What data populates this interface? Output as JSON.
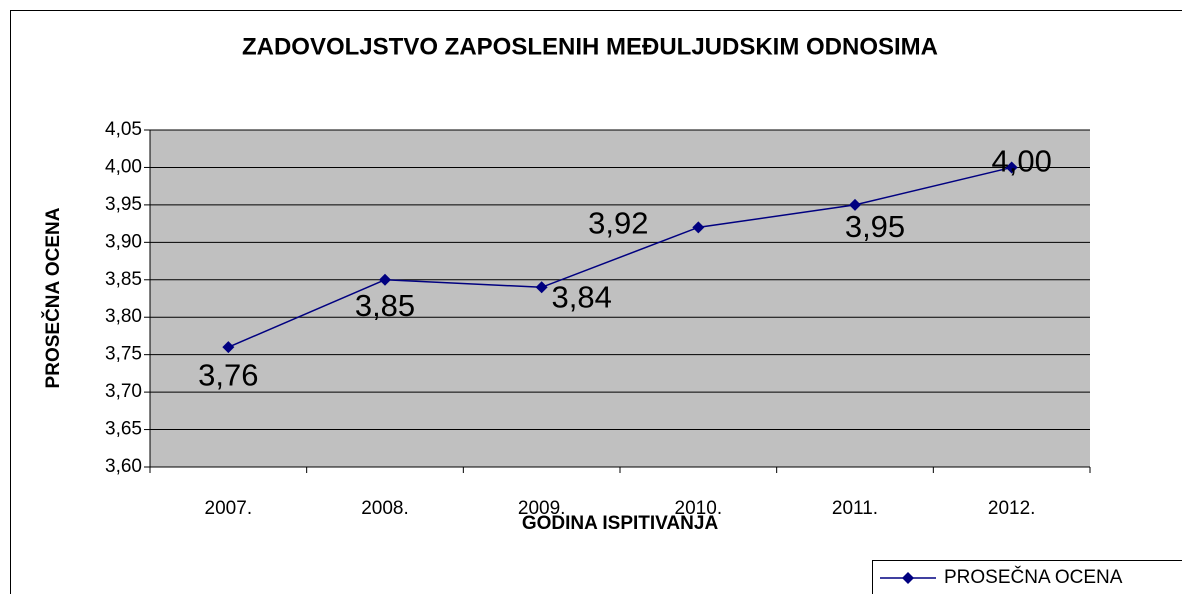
{
  "chart_data": {
    "type": "line",
    "title": "ZADOVOLJSTVO ZAPOSLENIH MEĐULJUDSKIM ODNOSIMA",
    "x_label": "GODINA ISPITIVANJA",
    "y_label": "PROSEČNA OCENA",
    "categories": [
      "2007.",
      "2008.",
      "2009.",
      "2010.",
      "2011.",
      "2012."
    ],
    "series": [
      {
        "name": "PROSEČNA OCENA",
        "color": "#000080",
        "values": [
          3.76,
          3.85,
          3.84,
          3.92,
          3.95,
          4.0
        ],
        "value_labels": [
          "3,76",
          "3,85",
          "3,84",
          "3,92",
          "3,95",
          "4,00"
        ]
      }
    ],
    "ylim": [
      3.6,
      4.05
    ],
    "yticks": [
      {
        "value": 3.6,
        "label": "3,60"
      },
      {
        "value": 3.65,
        "label": "3,65"
      },
      {
        "value": 3.7,
        "label": "3,70"
      },
      {
        "value": 3.75,
        "label": "3,75"
      },
      {
        "value": 3.8,
        "label": "3,80"
      },
      {
        "value": 3.85,
        "label": "3,85"
      },
      {
        "value": 3.9,
        "label": "3,90"
      },
      {
        "value": 3.95,
        "label": "3,95"
      },
      {
        "value": 4.0,
        "label": "4,00"
      },
      {
        "value": 4.05,
        "label": "4,05"
      }
    ],
    "grid": true,
    "plot_background": "#c0c0c0",
    "legend": "bottom-right"
  }
}
